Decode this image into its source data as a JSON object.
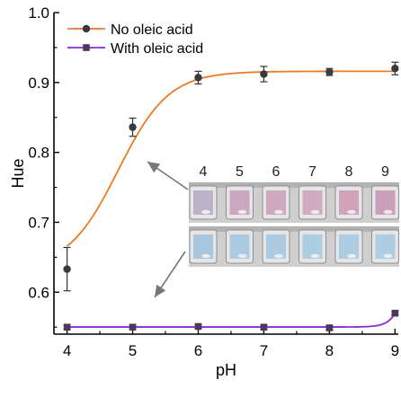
{
  "chart_data": {
    "type": "line",
    "xlabel": "pH",
    "ylabel": "Hue",
    "xlim": [
      3.8,
      9.05
    ],
    "ylim": [
      0.54,
      1.0
    ],
    "x_ticks": [
      "4",
      "5",
      "6",
      "7",
      "8",
      "9"
    ],
    "y_ticks": [
      "0.6",
      "0.7",
      "0.8",
      "0.9",
      "1.0"
    ],
    "legend_position": "top-left",
    "series": [
      {
        "name": "No oleic acid",
        "color": "#F07A22",
        "marker": "circle",
        "marker_color": "#3a3a3a",
        "x": [
          4,
          5,
          6,
          7,
          8,
          9
        ],
        "values": [
          0.633,
          0.836,
          0.907,
          0.912,
          0.915,
          0.92
        ],
        "error": [
          0.031,
          0.013,
          0.009,
          0.011,
          0.005,
          0.009
        ]
      },
      {
        "name": "With oleic acid",
        "color": "#8A2BE2",
        "marker": "square",
        "marker_color": "#4a3a5a",
        "x": [
          4,
          5,
          6,
          7,
          8,
          9
        ],
        "values": [
          0.55,
          0.55,
          0.551,
          0.55,
          0.549,
          0.57
        ],
        "error": [
          0.003,
          0.003,
          0.003,
          0.003,
          0.003,
          0.003
        ]
      }
    ],
    "inset": {
      "labels": [
        "4",
        "5",
        "6",
        "7",
        "8",
        "9"
      ],
      "top_row_label": "No oleic acid",
      "bottom_row_label": "With oleic acid",
      "top_colors": [
        "#b9b0c8",
        "#c9a3bd",
        "#cfa4be",
        "#cfa8c0",
        "#cf9eb8",
        "#c99bb6"
      ],
      "bottom_colors": [
        "#a7c4dc",
        "#a8c8e0",
        "#a9c9e1",
        "#aacbe2",
        "#abcbe2",
        "#abcbe2"
      ]
    }
  }
}
